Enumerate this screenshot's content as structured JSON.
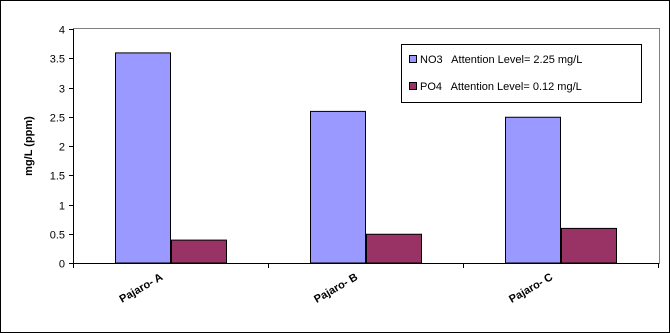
{
  "chart_data": {
    "type": "bar",
    "categories": [
      "Pajaro- A",
      "Pajaro- B",
      "Pajaro- C"
    ],
    "series": [
      {
        "name": "NO3   Attention Level= 2.25 mg/L",
        "values": [
          3.6,
          2.6,
          2.5
        ],
        "color": "#9999ff"
      },
      {
        "name": "PO4   Attention Level= 0.12 mg/L",
        "values": [
          0.4,
          0.5,
          0.6
        ],
        "color": "#993366"
      }
    ],
    "ylabel": "mg/L (ppm)",
    "xlabel": "",
    "ylim": [
      0,
      4
    ],
    "yticks": [
      0,
      0.5,
      1,
      1.5,
      2,
      2.5,
      3,
      3.5,
      4
    ],
    "ytick_labels": [
      "0",
      "0.5",
      "1",
      "1.5",
      "2",
      "2.5",
      "3",
      "3.5",
      "4"
    ],
    "grid": false,
    "legend_position": "top-right"
  }
}
